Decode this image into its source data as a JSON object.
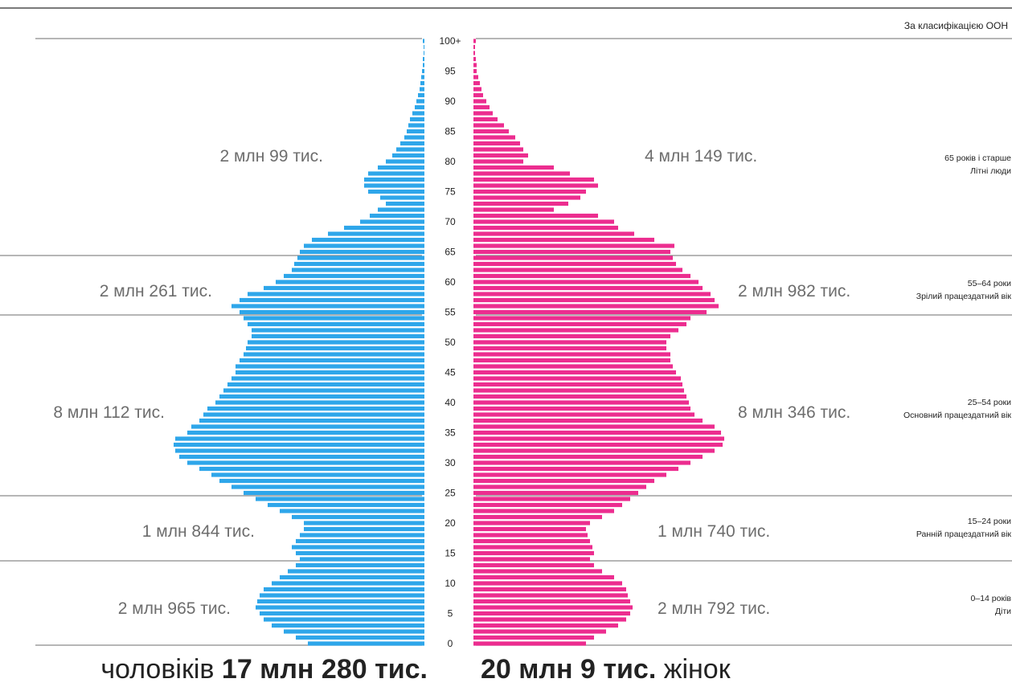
{
  "chart_data": {
    "type": "bar",
    "orientation": "horizontal-population-pyramid",
    "classification_label": "За класифікацією ООН",
    "age_ticks": [
      "0",
      "5",
      "10",
      "15",
      "20",
      "25",
      "30",
      "35",
      "40",
      "45",
      "50",
      "55",
      "60",
      "65",
      "70",
      "75",
      "80",
      "85",
      "90",
      "95",
      "100+"
    ],
    "age_groups": [
      {
        "range": "65 років і старше",
        "name": "Літні люди",
        "male": "2 млн 99 тис.",
        "female": "4 млн 149 тис."
      },
      {
        "range": "55–64 роки",
        "name": "Зрілий працездатний вік",
        "male": "2 млн 261 тис.",
        "female": "2 млн 982 тис."
      },
      {
        "range": "25–54 роки",
        "name": "Основний працездатний вік",
        "male": "8 млн 112 тис.",
        "female": "8 млн 346 тис."
      },
      {
        "range": "15–24 роки",
        "name": "Ранній працездатний вік",
        "male": "1 млн 844 тис.",
        "female": "1 млн 740 тис."
      },
      {
        "range": "0–14 років",
        "name": "Діти",
        "male": "2 млн 965 тис.",
        "female": "2 млн 792 тис."
      }
    ],
    "series": [
      {
        "color": "#2ea6ea",
        "values": [
          145,
          160,
          175,
          190,
          200,
          205,
          210,
          208,
          205,
          200,
          190,
          180,
          170,
          160,
          155,
          160,
          165,
          160,
          155,
          150,
          150,
          165,
          180,
          195,
          210,
          225,
          240,
          255,
          265,
          280,
          295,
          305,
          310,
          312,
          310,
          295,
          290,
          280,
          275,
          270,
          260,
          255,
          250,
          245,
          240,
          235,
          235,
          230,
          225,
          222,
          220,
          215,
          215,
          220,
          225,
          230,
          240,
          230,
          220,
          200,
          185,
          175,
          165,
          162,
          158,
          155,
          150,
          140,
          120,
          100,
          80,
          68,
          58,
          48,
          55,
          70,
          75,
          75,
          70,
          58,
          48,
          40,
          35,
          30,
          25,
          22,
          20,
          18,
          15,
          12,
          10,
          8,
          6,
          5,
          4,
          3,
          2,
          2,
          1,
          1,
          2
        ]
      },
      {
        "color": "#ec2d8f",
        "values": [
          140,
          150,
          165,
          180,
          190,
          195,
          198,
          195,
          192,
          190,
          185,
          175,
          160,
          150,
          145,
          150,
          148,
          145,
          142,
          140,
          145,
          160,
          175,
          185,
          195,
          205,
          215,
          225,
          240,
          255,
          270,
          285,
          300,
          310,
          312,
          308,
          300,
          285,
          275,
          270,
          268,
          265,
          262,
          260,
          258,
          252,
          248,
          245,
          245,
          240,
          240,
          245,
          255,
          265,
          270,
          290,
          305,
          300,
          295,
          285,
          280,
          270,
          260,
          252,
          248,
          245,
          250,
          225,
          200,
          180,
          175,
          155,
          100,
          118,
          133,
          140,
          155,
          150,
          120,
          100,
          62,
          68,
          62,
          58,
          52,
          44,
          38,
          30,
          24,
          20,
          16,
          12,
          10,
          8,
          6,
          4,
          4,
          3,
          2,
          2,
          3
        ]
      }
    ],
    "totals": {
      "male_word": "чоловіків",
      "male_value": "17 млн 280 тис.",
      "female_value": "20 млн 9 тис.",
      "female_word": "жінок"
    }
  }
}
